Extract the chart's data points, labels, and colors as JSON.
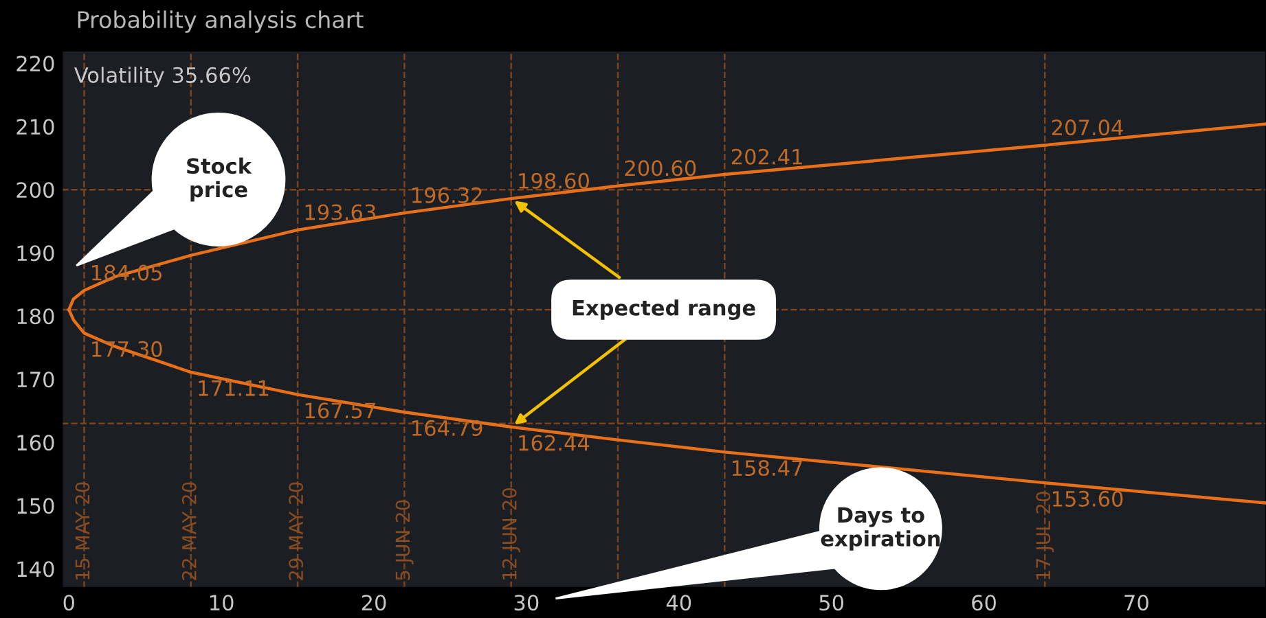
{
  "chart_data": {
    "type": "line",
    "title": "Probability analysis chart",
    "x": [
      0,
      0.3,
      1,
      3,
      8,
      15,
      22,
      29,
      36,
      43,
      64,
      78.5
    ],
    "series": [
      {
        "color": "#e8701a",
        "values": [
          181,
          182.7,
          184.05,
          186.2,
          189.6,
          193.63,
          196.32,
          198.6,
          200.6,
          202.41,
          207.04,
          210.4
        ],
        "value_labels": [
          null,
          null,
          "184.05",
          null,
          null,
          "193.63",
          "196.32",
          "198.60",
          "200.60",
          "202.41",
          "207.04",
          null
        ]
      },
      {
        "color": "#e8701a",
        "values": [
          181,
          179.4,
          177.3,
          175.2,
          171.11,
          167.57,
          164.79,
          162.44,
          160.4,
          158.47,
          153.6,
          150.4
        ],
        "value_labels": [
          null,
          null,
          "177.30",
          null,
          "171.11",
          "167.57",
          "164.79",
          "162.44",
          null,
          "158.47",
          "153.60",
          null
        ]
      }
    ],
    "xlim": [
      -0.45,
      78.5
    ],
    "ylim": [
      137,
      222
    ],
    "xticks": [
      0,
      10,
      20,
      30,
      40,
      50,
      60,
      70
    ],
    "yticks": [
      140,
      150,
      160,
      170,
      180,
      190,
      200,
      210,
      220
    ],
    "grid": false,
    "marker": "none",
    "line_style": "solid",
    "ref_lines": [
      {
        "axis": "x",
        "value": 1,
        "label": "15 MAY 20",
        "color": "#7a4420",
        "line_style": "dashed"
      },
      {
        "axis": "x",
        "value": 8,
        "label": "22 MAY 20",
        "color": "#7a4420",
        "line_style": "dashed"
      },
      {
        "axis": "x",
        "value": 15,
        "label": "29 MAY 20",
        "color": "#7a4420",
        "line_style": "dashed"
      },
      {
        "axis": "x",
        "value": 22,
        "label": "5 JUN 20",
        "color": "#7a4420",
        "line_style": "dashed"
      },
      {
        "axis": "x",
        "value": 29,
        "label": "12 JUN 20",
        "color": "#7a4420",
        "line_style": "dashed"
      },
      {
        "axis": "x",
        "value": 36,
        "label": null,
        "color": "#7a4420",
        "line_style": "dashed"
      },
      {
        "axis": "x",
        "value": 43,
        "label": null,
        "color": "#7a4420",
        "line_style": "dashed"
      },
      {
        "axis": "x",
        "value": 64,
        "label": "17 JUL 20",
        "color": "#7a4420",
        "line_style": "dashed"
      },
      {
        "axis": "y",
        "value": 200,
        "label": null,
        "color": "#7a4420",
        "line_style": "dashed"
      },
      {
        "axis": "y",
        "value": 181,
        "label": null,
        "color": "#7a4420",
        "line_style": "dashed"
      },
      {
        "axis": "y",
        "value": 163,
        "label": null,
        "color": "#7a4420",
        "line_style": "dashed"
      }
    ],
    "annotations": [
      "Volatility 35.66%",
      "Stock price",
      {
        "text": "Expected range",
        "x": 29,
        "y": 198.6
      },
      "Days to expiration"
    ]
  }
}
